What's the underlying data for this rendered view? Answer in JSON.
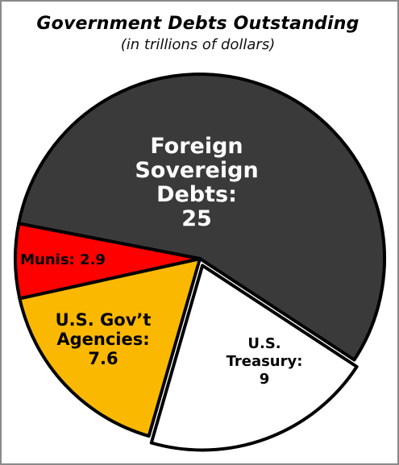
{
  "chart_data": {
    "type": "pie",
    "title": "Government Debts Outstanding",
    "subtitle": "(in trillions of dollars)",
    "slices": [
      {
        "label_lines": [
          "Foreign",
          "Sovereign",
          "Debts:",
          "25"
        ],
        "value": 25,
        "color": "#3a3a3a",
        "text_color": "#ffffff"
      },
      {
        "label_lines": [
          "U.S.",
          "Treasury:",
          "9"
        ],
        "value": 9,
        "color": "#ffffff",
        "text_color": "#000000"
      },
      {
        "label_lines": [
          "U.S. Gov’t",
          "Agencies:",
          "7.6"
        ],
        "value": 7.6,
        "color": "#fbb800",
        "text_color": "#000000"
      },
      {
        "label_lines": [
          "Munis: 2.9"
        ],
        "value": 2.9,
        "color": "#ff0000",
        "text_color": "#000000"
      }
    ]
  }
}
